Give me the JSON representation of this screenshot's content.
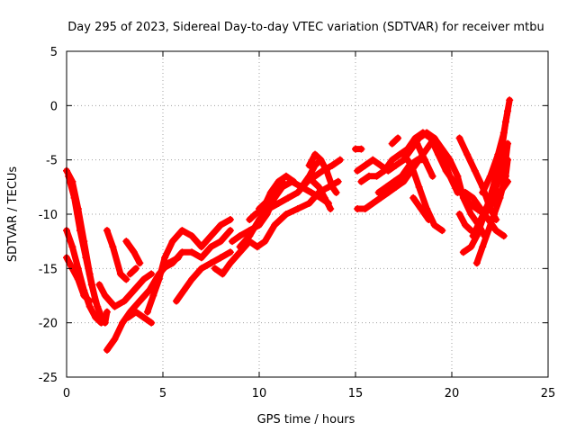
{
  "chart_data": {
    "type": "scatter",
    "title": "Day 295 of 2023, Sidereal Day-to-day VTEC variation (SDTVAR) for receiver mtbu",
    "xlabel": "GPS time / hours",
    "ylabel": "SDTVAR / TECUs",
    "xlim": [
      0,
      25
    ],
    "ylim": [
      -25,
      5
    ],
    "xticks": [
      0,
      5,
      10,
      15,
      20,
      25
    ],
    "yticks": [
      -25,
      -20,
      -15,
      -10,
      -5,
      0,
      5
    ],
    "grid": true,
    "marker": "plus",
    "color": "#ff0000",
    "series": [
      {
        "values": [
          [
            0.0,
            -6.0
          ],
          [
            0.3,
            -7.0
          ],
          [
            0.6,
            -9.5
          ],
          [
            0.9,
            -12.5
          ],
          [
            1.2,
            -15.5
          ],
          [
            1.5,
            -18.0
          ],
          [
            1.8,
            -19.5
          ],
          [
            2.0,
            -20.0
          ],
          [
            2.1,
            -19.0
          ]
        ]
      },
      {
        "values": [
          [
            0.1,
            -6.5
          ],
          [
            0.4,
            -8.5
          ],
          [
            0.7,
            -11.5
          ],
          [
            1.0,
            -14.0
          ],
          [
            1.3,
            -16.5
          ],
          [
            1.6,
            -18.5
          ],
          [
            1.9,
            -19.8
          ]
        ]
      },
      {
        "values": [
          [
            0.0,
            -11.5
          ],
          [
            0.3,
            -13.0
          ],
          [
            0.6,
            -15.0
          ],
          [
            0.9,
            -17.0
          ],
          [
            1.2,
            -18.5
          ],
          [
            1.5,
            -19.5
          ],
          [
            1.8,
            -20.0
          ]
        ]
      },
      {
        "values": [
          [
            0.0,
            -14.0
          ],
          [
            0.3,
            -15.0
          ],
          [
            0.6,
            -16.0
          ],
          [
            0.9,
            -17.5
          ],
          [
            1.2,
            -18.0
          ]
        ]
      },
      {
        "values": [
          [
            2.1,
            -22.5
          ],
          [
            2.5,
            -21.5
          ],
          [
            2.9,
            -20.0
          ],
          [
            3.3,
            -19.0
          ],
          [
            3.8,
            -18.0
          ],
          [
            4.3,
            -17.0
          ],
          [
            4.8,
            -15.5
          ],
          [
            5.3,
            -14.5
          ],
          [
            5.8,
            -14.0
          ]
        ]
      },
      {
        "values": [
          [
            1.7,
            -16.5
          ],
          [
            2.0,
            -17.5
          ],
          [
            2.5,
            -18.5
          ],
          [
            3.0,
            -18.0
          ],
          [
            3.5,
            -17.0
          ],
          [
            4.0,
            -16.0
          ],
          [
            4.4,
            -15.5
          ]
        ]
      },
      {
        "values": [
          [
            2.1,
            -11.5
          ],
          [
            2.4,
            -13.0
          ],
          [
            2.8,
            -15.5
          ],
          [
            3.1,
            -16.0
          ]
        ]
      },
      {
        "values": [
          [
            3.1,
            -12.5
          ],
          [
            3.5,
            -13.5
          ],
          [
            3.8,
            -14.5
          ]
        ]
      },
      {
        "values": [
          [
            3.2,
            -19.5
          ],
          [
            3.6,
            -19.0
          ],
          [
            4.0,
            -19.5
          ],
          [
            4.4,
            -20.0
          ]
        ]
      },
      {
        "values": [
          [
            3.3,
            -15.5
          ],
          [
            3.6,
            -15.0
          ]
        ]
      },
      {
        "values": [
          [
            4.2,
            -19.0
          ],
          [
            4.5,
            -17.5
          ],
          [
            4.8,
            -16.0
          ],
          [
            5.1,
            -14.0
          ],
          [
            5.5,
            -12.5
          ],
          [
            6.0,
            -11.5
          ],
          [
            6.5,
            -12.0
          ],
          [
            7.0,
            -13.0
          ],
          [
            7.5,
            -12.0
          ],
          [
            8.0,
            -11.0
          ],
          [
            8.5,
            -10.5
          ]
        ]
      },
      {
        "values": [
          [
            4.6,
            -16.5
          ],
          [
            5.0,
            -15.0
          ],
          [
            5.5,
            -14.5
          ],
          [
            6.0,
            -13.5
          ],
          [
            6.5,
            -13.5
          ],
          [
            7.0,
            -14.0
          ],
          [
            7.5,
            -13.0
          ],
          [
            8.0,
            -12.5
          ],
          [
            8.5,
            -11.5
          ]
        ]
      },
      {
        "values": [
          [
            5.7,
            -18.0
          ],
          [
            6.1,
            -17.0
          ],
          [
            6.5,
            -16.0
          ],
          [
            7.0,
            -15.0
          ],
          [
            7.5,
            -14.5
          ],
          [
            8.0,
            -14.0
          ],
          [
            8.5,
            -13.5
          ]
        ]
      },
      {
        "values": [
          [
            7.7,
            -15.0
          ],
          [
            8.1,
            -15.5
          ],
          [
            8.5,
            -14.5
          ],
          [
            9.0,
            -13.5
          ],
          [
            9.5,
            -12.5
          ],
          [
            9.9,
            -13.0
          ],
          [
            10.3,
            -12.5
          ],
          [
            10.8,
            -11.0
          ],
          [
            11.4,
            -10.0
          ],
          [
            12.0,
            -9.5
          ],
          [
            12.6,
            -9.0
          ],
          [
            13.1,
            -8.0
          ],
          [
            13.6,
            -7.5
          ],
          [
            14.1,
            -7.0
          ]
        ]
      },
      {
        "values": [
          [
            8.6,
            -12.5
          ],
          [
            9.0,
            -12.0
          ],
          [
            9.5,
            -11.5
          ],
          [
            10.0,
            -11.0
          ],
          [
            10.4,
            -10.0
          ],
          [
            10.8,
            -8.5
          ],
          [
            11.2,
            -7.5
          ],
          [
            11.7,
            -7.0
          ],
          [
            12.2,
            -7.5
          ],
          [
            12.7,
            -8.0
          ],
          [
            13.2,
            -8.5
          ],
          [
            13.6,
            -9.0
          ]
        ]
      },
      {
        "values": [
          [
            9.0,
            -13.0
          ],
          [
            9.5,
            -12.0
          ],
          [
            10.0,
            -10.5
          ],
          [
            10.5,
            -9.5
          ],
          [
            11.0,
            -9.0
          ],
          [
            11.5,
            -8.5
          ],
          [
            12.0,
            -8.0
          ],
          [
            12.5,
            -7.0
          ],
          [
            12.9,
            -6.5
          ],
          [
            13.3,
            -6.0
          ],
          [
            13.8,
            -5.5
          ],
          [
            14.2,
            -5.0
          ]
        ]
      },
      {
        "values": [
          [
            9.5,
            -10.5
          ],
          [
            9.8,
            -10.0
          ],
          [
            10.2,
            -9.5
          ],
          [
            10.6,
            -8.0
          ],
          [
            11.0,
            -7.0
          ],
          [
            11.4,
            -6.5
          ],
          [
            11.8,
            -7.0
          ]
        ]
      },
      {
        "values": [
          [
            10.0,
            -9.5
          ],
          [
            10.3,
            -9.0
          ],
          [
            10.6,
            -8.5
          ],
          [
            10.9,
            -8.0
          ],
          [
            11.2,
            -7.0
          ]
        ]
      },
      {
        "values": [
          [
            12.2,
            -7.5
          ],
          [
            12.6,
            -6.5
          ],
          [
            12.9,
            -5.5
          ],
          [
            13.2,
            -5.0
          ],
          [
            13.5,
            -6.0
          ],
          [
            13.8,
            -7.5
          ],
          [
            14.0,
            -8.0
          ]
        ]
      },
      {
        "values": [
          [
            12.8,
            -7.0
          ],
          [
            13.1,
            -7.5
          ],
          [
            13.4,
            -8.5
          ],
          [
            13.7,
            -9.5
          ]
        ]
      },
      {
        "values": [
          [
            12.6,
            -5.5
          ],
          [
            12.9,
            -4.5
          ],
          [
            13.2,
            -5.0
          ]
        ]
      },
      {
        "values": [
          [
            15.0,
            -4.0
          ],
          [
            15.3,
            -4.0
          ]
        ]
      },
      {
        "values": [
          [
            15.1,
            -6.0
          ],
          [
            15.5,
            -5.5
          ],
          [
            15.9,
            -5.0
          ],
          [
            16.3,
            -5.5
          ],
          [
            16.7,
            -6.0
          ],
          [
            17.1,
            -5.5
          ],
          [
            17.5,
            -5.0
          ],
          [
            17.9,
            -4.0
          ],
          [
            18.3,
            -3.0
          ],
          [
            18.7,
            -2.5
          ],
          [
            19.1,
            -3.0
          ],
          [
            19.5,
            -4.5
          ],
          [
            19.9,
            -6.5
          ],
          [
            20.3,
            -8.0
          ],
          [
            20.7,
            -8.0
          ],
          [
            21.1,
            -8.5
          ],
          [
            21.5,
            -9.5
          ],
          [
            21.9,
            -10.5
          ],
          [
            22.3,
            -11.5
          ],
          [
            22.7,
            -12.0
          ]
        ]
      },
      {
        "values": [
          [
            15.1,
            -9.5
          ],
          [
            15.5,
            -9.5
          ],
          [
            15.9,
            -9.0
          ],
          [
            16.3,
            -8.5
          ],
          [
            16.7,
            -8.0
          ],
          [
            17.1,
            -7.5
          ],
          [
            17.5,
            -7.0
          ],
          [
            17.9,
            -6.0
          ],
          [
            18.3,
            -5.0
          ],
          [
            18.7,
            -4.0
          ],
          [
            19.1,
            -3.0
          ],
          [
            19.5,
            -4.0
          ],
          [
            19.9,
            -5.0
          ],
          [
            20.3,
            -6.5
          ],
          [
            20.6,
            -8.5
          ],
          [
            21.0,
            -10.0
          ],
          [
            21.4,
            -11.0
          ],
          [
            21.7,
            -12.0
          ]
        ]
      },
      {
        "values": [
          [
            15.3,
            -7.0
          ],
          [
            15.7,
            -6.5
          ],
          [
            16.1,
            -6.5
          ],
          [
            16.5,
            -6.0
          ],
          [
            16.9,
            -5.0
          ],
          [
            17.3,
            -4.5
          ],
          [
            17.7,
            -4.0
          ],
          [
            18.1,
            -3.0
          ],
          [
            18.5,
            -2.5
          ],
          [
            18.9,
            -3.0
          ],
          [
            19.3,
            -4.5
          ],
          [
            19.7,
            -6.0
          ],
          [
            20.1,
            -7.0
          ],
          [
            20.5,
            -8.0
          ],
          [
            20.9,
            -9.0
          ],
          [
            21.3,
            -9.5
          ],
          [
            21.7,
            -10.0
          ],
          [
            22.1,
            -9.0
          ],
          [
            22.5,
            -8.0
          ],
          [
            22.9,
            -7.0
          ]
        ]
      },
      {
        "values": [
          [
            16.2,
            -8.0
          ],
          [
            16.6,
            -7.5
          ],
          [
            17.0,
            -7.0
          ],
          [
            17.4,
            -6.5
          ],
          [
            17.8,
            -5.5
          ],
          [
            18.2,
            -5.0
          ],
          [
            18.6,
            -5.0
          ]
        ]
      },
      {
        "values": [
          [
            16.9,
            -3.5
          ],
          [
            17.2,
            -3.0
          ]
        ]
      },
      {
        "values": [
          [
            17.5,
            -4.5
          ],
          [
            17.9,
            -5.5
          ],
          [
            18.3,
            -7.5
          ],
          [
            18.7,
            -9.5
          ],
          [
            19.1,
            -11.0
          ],
          [
            19.5,
            -11.5
          ]
        ]
      },
      {
        "values": [
          [
            18.2,
            -3.5
          ],
          [
            18.6,
            -5.0
          ],
          [
            19.0,
            -6.5
          ]
        ]
      },
      {
        "values": [
          [
            18.0,
            -8.5
          ],
          [
            18.4,
            -9.5
          ],
          [
            18.8,
            -10.5
          ]
        ]
      },
      {
        "values": [
          [
            20.4,
            -3.0
          ],
          [
            20.8,
            -4.5
          ],
          [
            21.2,
            -6.0
          ],
          [
            21.6,
            -7.5
          ],
          [
            22.0,
            -9.5
          ],
          [
            22.3,
            -10.5
          ]
        ]
      },
      {
        "values": [
          [
            20.4,
            -10.0
          ],
          [
            20.7,
            -11.0
          ],
          [
            21.0,
            -11.5
          ]
        ]
      },
      {
        "values": [
          [
            20.6,
            -13.5
          ],
          [
            21.0,
            -13.0
          ],
          [
            21.3,
            -12.0
          ],
          [
            21.6,
            -10.5
          ],
          [
            22.0,
            -9.0
          ],
          [
            22.4,
            -7.0
          ],
          [
            22.8,
            -5.0
          ],
          [
            22.9,
            -3.5
          ]
        ]
      },
      {
        "values": [
          [
            21.3,
            -14.5
          ],
          [
            21.6,
            -13.0
          ],
          [
            21.9,
            -11.5
          ],
          [
            22.2,
            -10.0
          ],
          [
            22.5,
            -8.5
          ],
          [
            22.8,
            -6.5
          ],
          [
            22.9,
            -5.0
          ]
        ]
      },
      {
        "values": [
          [
            21.1,
            -12.0
          ],
          [
            21.5,
            -10.5
          ],
          [
            21.9,
            -9.0
          ],
          [
            22.3,
            -6.5
          ],
          [
            22.6,
            -4.0
          ],
          [
            22.8,
            -1.5
          ],
          [
            23.0,
            0.5
          ]
        ]
      },
      {
        "values": [
          [
            21.6,
            -8.0
          ],
          [
            22.0,
            -6.5
          ],
          [
            22.4,
            -4.5
          ],
          [
            22.7,
            -2.5
          ],
          [
            22.9,
            -0.5
          ]
        ]
      }
    ]
  }
}
